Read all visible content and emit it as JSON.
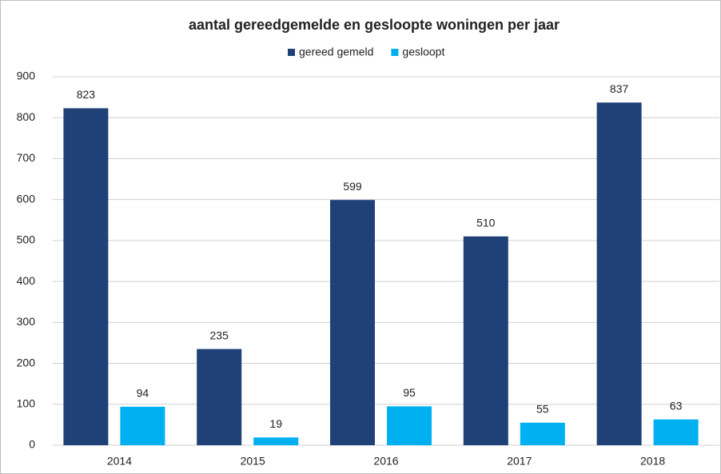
{
  "chart_data": {
    "type": "bar",
    "title": "aantal gereedgemelde en gesloopte woningen per jaar",
    "categories": [
      "2014",
      "2015",
      "2016",
      "2017",
      "2018"
    ],
    "series": [
      {
        "name": "gereed gemeld",
        "color": "#1f4178",
        "values": [
          823,
          235,
          599,
          510,
          837
        ]
      },
      {
        "name": "gesloopt",
        "color": "#00b0f0",
        "values": [
          94,
          19,
          95,
          55,
          63
        ]
      }
    ],
    "ylim": [
      0,
      900
    ],
    "yticks": [
      0,
      100,
      200,
      300,
      400,
      500,
      600,
      700,
      800,
      900
    ],
    "grid": true,
    "legend": "top"
  }
}
